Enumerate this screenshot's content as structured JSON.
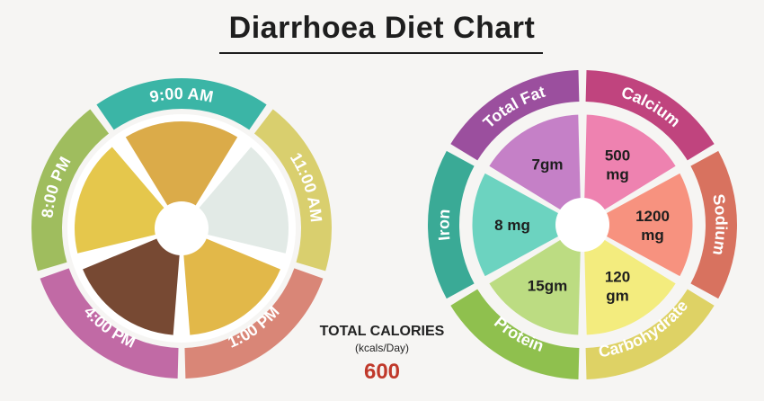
{
  "title": "Diarrhoea Diet Chart",
  "meal_times": [
    {
      "label": "9:00 AM",
      "color": "#3bb5a6",
      "food": "vegetable-soup"
    },
    {
      "label": "11:00 AM",
      "color": "#d9cf6e",
      "food": "glass-of-water-and-apple"
    },
    {
      "label": "1:00 PM",
      "color": "#d98677",
      "food": "vegetable-khichdi"
    },
    {
      "label": "4:00 PM",
      "color": "#c16aa5",
      "food": "cup-of-tea"
    },
    {
      "label": "8:00 PM",
      "color": "#9fbd5e",
      "food": "lentil-khichdi"
    }
  ],
  "nutrients": [
    {
      "name": "Total Fat",
      "value": "7gm",
      "outer_color": "#9b4f9e",
      "inner_color": "#c580c7"
    },
    {
      "name": "Calcium",
      "value": "500\nmg",
      "outer_color": "#c0447e",
      "inner_color": "#ee82b0"
    },
    {
      "name": "Sodium",
      "value": "1200\nmg",
      "outer_color": "#d8725f",
      "inner_color": "#f7927f"
    },
    {
      "name": "Carbohydrate",
      "value": "120\ngm",
      "outer_color": "#ded265",
      "inner_color": "#f3ec7e"
    },
    {
      "name": "Protein",
      "value": "15gm",
      "outer_color": "#8fc04e",
      "inner_color": "#bcdc82"
    },
    {
      "name": "Iron",
      "value": "8 mg",
      "outer_color": "#3aaa96",
      "inner_color": "#6cd3c0"
    }
  ],
  "calories": {
    "label": "TOTAL CALORIES",
    "unit": "(kcals/Day)",
    "value": "600"
  }
}
